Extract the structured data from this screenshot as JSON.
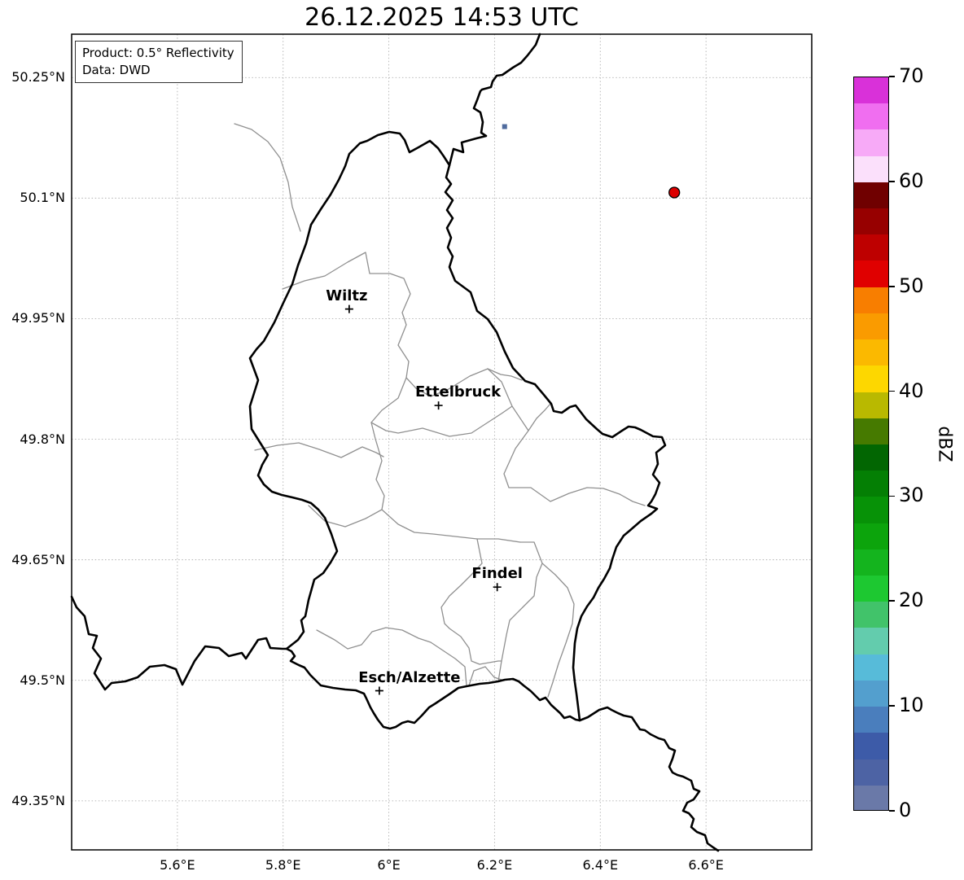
{
  "title": "26.12.2025 14:53 UTC",
  "info_box": {
    "line1": "Product: 0.5° Reflectivity",
    "line2": "Data: DWD"
  },
  "chart_data": {
    "type": "map",
    "subtype": "weather-radar-reflectivity",
    "title": "26.12.2025 14:53 UTC",
    "product": "0.5° Reflectivity",
    "data_source": "DWD",
    "region": "Luxembourg and surroundings",
    "grid": true,
    "x_axis": {
      "ticks": [
        5.6,
        5.8,
        6.0,
        6.2,
        6.4,
        6.6
      ],
      "tick_labels": [
        "5.6°E",
        "5.8°E",
        "6°E",
        "6.2°E",
        "6.4°E",
        "6.6°E"
      ],
      "range": [
        5.4,
        6.8
      ]
    },
    "y_axis": {
      "ticks": [
        50.25,
        50.1,
        49.95,
        49.8,
        49.65,
        49.5,
        49.35
      ],
      "tick_labels": [
        "50.25°N",
        "50.1°N",
        "49.95°N",
        "49.8°N",
        "49.65°N",
        "49.5°N",
        "49.35°N"
      ],
      "range": [
        49.289,
        50.304
      ]
    },
    "colorbar": {
      "label": "dBZ",
      "min": 0,
      "max": 70,
      "segment_step": 2.5,
      "ticks": [
        0,
        10,
        20,
        30,
        40,
        50,
        60,
        70
      ],
      "colors_bottom_to_top": [
        "#6a79a8",
        "#4d63a4",
        "#3d5ba8",
        "#4a7ebd",
        "#539fce",
        "#57bbd9",
        "#63ccad",
        "#41c36a",
        "#1dc831",
        "#14b41e",
        "#0ca40c",
        "#079207",
        "#047f04",
        "#026602",
        "#467a00",
        "#b9b900",
        "#fdd700",
        "#fbb900",
        "#fa9b00",
        "#f87e00",
        "#e00000",
        "#be0000",
        "#970000",
        "#700000",
        "#fbe0fb",
        "#f7aaf7",
        "#f06ef0",
        "#d931d9"
      ]
    },
    "echoes": [
      {
        "lon": 6.54,
        "lat": 50.107,
        "dbz": 51,
        "shape": "circle",
        "color": "#dd0000"
      },
      {
        "lon": 6.219,
        "lat": 50.189,
        "dbz": 4,
        "shape": "pixel",
        "color": "#4f6b9e"
      }
    ],
    "cities": [
      {
        "name": "Wiltz",
        "lon": 5.925,
        "lat": 49.962,
        "label_dx": -3
      },
      {
        "name": "Ettelbruck",
        "lon": 6.094,
        "lat": 49.842,
        "label_dx": 24
      },
      {
        "name": "Findel",
        "lon": 6.205,
        "lat": 49.616,
        "label_dx": 0
      },
      {
        "name": "Esch/Alzette",
        "lon": 5.982,
        "lat": 49.487,
        "label_dx": 37
      }
    ]
  }
}
